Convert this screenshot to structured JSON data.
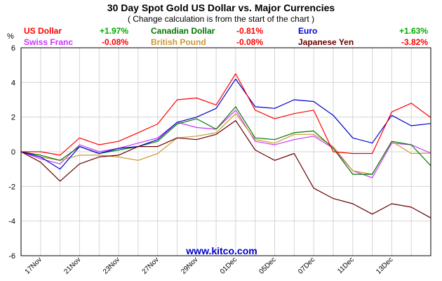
{
  "chart_data": {
    "type": "line",
    "title": "30 Day Spot Gold US Dollar vs. Major Currencies",
    "subtitle": "( Change calculation is from the start of the chart )",
    "ylabel": "%",
    "watermark": "www.kitco.com",
    "ylim": [
      -6,
      6
    ],
    "yticks": [
      "6",
      "4",
      "2",
      "0",
      "-2",
      "-4",
      "-6"
    ],
    "grid": true,
    "x_count": 22,
    "xtick_labels": [
      {
        "i": 1,
        "label": "17Nov"
      },
      {
        "i": 3,
        "label": "21Nov"
      },
      {
        "i": 5,
        "label": "23Nov"
      },
      {
        "i": 7,
        "label": "27Nov"
      },
      {
        "i": 9,
        "label": "29Nov"
      },
      {
        "i": 11,
        "label": "01Dec"
      },
      {
        "i": 13,
        "label": "05Dec"
      },
      {
        "i": 15,
        "label": "07Dec"
      },
      {
        "i": 17,
        "label": "11Dec"
      },
      {
        "i": 19,
        "label": "13Dec"
      }
    ],
    "series": [
      {
        "name": "Swiss Franc",
        "change": "-0.08%",
        "color": "#cc33ff",
        "change_color": "#ff0000",
        "values": [
          0,
          -0.4,
          -0.7,
          0.4,
          0.0,
          0.2,
          0.5,
          0.8,
          1.7,
          1.4,
          1.3,
          2.4,
          0.6,
          0.4,
          0.7,
          0.9,
          0.2,
          -1.1,
          -1.5,
          0.5,
          0.4,
          -0.08
        ]
      },
      {
        "name": "British Pound",
        "change": "-0.08%",
        "color": "#cc9933",
        "change_color": "#ff0000",
        "values": [
          0,
          -0.3,
          -0.5,
          -0.2,
          -0.2,
          -0.3,
          -0.5,
          -0.1,
          0.8,
          0.9,
          1.1,
          2.2,
          0.7,
          0.5,
          1.0,
          1.0,
          0.3,
          -1.1,
          -1.3,
          0.6,
          -0.1,
          -0.08
        ]
      },
      {
        "name": "Canadian Dollar",
        "change": "-0.81%",
        "color": "#007700",
        "change_color": "#ff0000",
        "values": [
          0,
          -0.2,
          -0.5,
          0.3,
          -0.1,
          0.1,
          0.3,
          0.6,
          1.6,
          1.9,
          1.3,
          2.6,
          0.8,
          0.7,
          1.1,
          1.2,
          0.2,
          -1.3,
          -1.3,
          0.6,
          0.4,
          -0.81
        ]
      },
      {
        "name": "Euro",
        "change": "+1.63%",
        "color": "#0000cc",
        "change_color": "#00aa00",
        "values": [
          0,
          -0.3,
          -1.0,
          0.3,
          -0.1,
          0.2,
          0.3,
          0.7,
          1.7,
          2.0,
          2.5,
          4.2,
          2.6,
          2.5,
          3.0,
          2.9,
          2.1,
          0.8,
          0.5,
          2.1,
          1.5,
          1.63
        ]
      },
      {
        "name": "US Dollar",
        "change": "+1.97%",
        "color": "#ff0000",
        "change_color": "#00aa00",
        "values": [
          0,
          0.0,
          -0.2,
          0.8,
          0.4,
          0.6,
          1.1,
          1.6,
          3.0,
          3.1,
          2.7,
          4.5,
          2.4,
          1.9,
          2.2,
          2.4,
          0.0,
          -0.1,
          -0.1,
          2.3,
          2.8,
          1.97
        ]
      },
      {
        "name": "Japanese Yen",
        "change": "-3.82%",
        "color": "#660000",
        "change_color": "#ff0000",
        "values": [
          0,
          -0.6,
          -1.7,
          -0.7,
          -0.3,
          -0.2,
          0.3,
          0.3,
          0.8,
          0.7,
          1.0,
          1.8,
          0.1,
          -0.5,
          -0.1,
          -2.1,
          -2.7,
          -3.0,
          -3.6,
          -3.0,
          -3.2,
          -3.82
        ]
      }
    ],
    "legend_order": [
      "US Dollar",
      "Canadian Dollar",
      "Euro",
      "Swiss Franc",
      "British Pound",
      "Japanese Yen"
    ]
  }
}
